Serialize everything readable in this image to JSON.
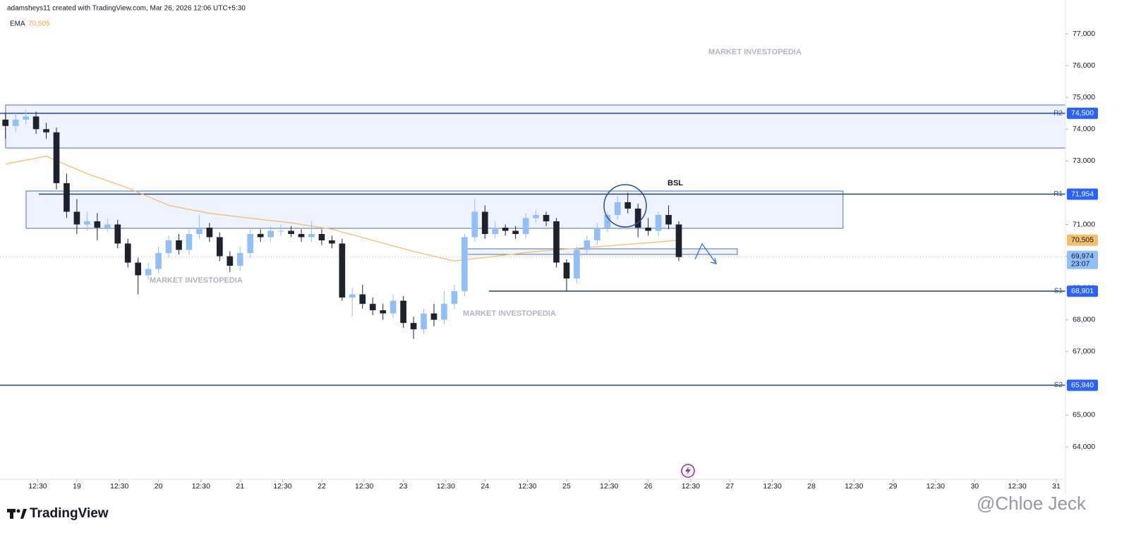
{
  "chart_data": {
    "type": "candlestick",
    "header": "adamsheys11 created with TradingView.com, Mar 26, 2026 12:06 UTC+5:30",
    "ema": {
      "name": "EMA",
      "value": 70505,
      "value_label": "70,505",
      "color": "#f2c06b",
      "x": [
        3,
        15,
        27,
        39,
        51,
        63,
        75,
        87,
        99,
        111,
        123,
        135,
        147,
        159,
        171,
        183,
        195,
        201
      ],
      "values": [
        72900,
        73150,
        72600,
        72150,
        71600,
        71350,
        71200,
        71050,
        70850,
        70500,
        70150,
        69850,
        70000,
        70150,
        70250,
        70350,
        70450,
        70505
      ]
    },
    "candles": {
      "up_color": "#90bff9",
      "down_color": "#1e222d",
      "x": [
        3,
        6,
        9,
        12,
        15,
        18,
        21,
        24,
        27,
        30,
        33,
        36,
        39,
        42,
        45,
        48,
        51,
        54,
        57,
        60,
        63,
        66,
        69,
        72,
        75,
        78,
        81,
        84,
        87,
        90,
        93,
        96,
        99,
        102,
        105,
        108,
        111,
        114,
        117,
        120,
        123,
        126,
        129,
        132,
        135,
        138,
        141,
        144,
        147,
        150,
        153,
        156,
        159,
        162,
        165,
        168,
        171,
        174,
        177,
        180,
        183,
        186,
        189,
        192,
        195,
        198,
        201
      ],
      "open": [
        74300,
        74100,
        74300,
        74400,
        74000,
        73900,
        72300,
        71400,
        71000,
        71100,
        70900,
        71000,
        70400,
        69800,
        69400,
        69600,
        70100,
        70500,
        70200,
        70700,
        70900,
        70600,
        70000,
        69700,
        70100,
        70700,
        70600,
        70800,
        70800,
        70700,
        70600,
        70700,
        70500,
        70400,
        68700,
        68800,
        68500,
        68300,
        68200,
        68600,
        67900,
        67700,
        68200,
        68000,
        68500,
        68900,
        70600,
        71400,
        70700,
        70900,
        70800,
        70700,
        71200,
        71300,
        71100,
        69800,
        69300,
        70200,
        70500,
        70900,
        71300,
        71700,
        71500,
        70900,
        70800,
        71300,
        71000
      ],
      "high": [
        74500,
        74500,
        74600,
        74550,
        74200,
        74050,
        72600,
        71800,
        71400,
        71350,
        71200,
        71150,
        70550,
        69950,
        69800,
        70300,
        70650,
        70700,
        70900,
        71300,
        71050,
        70750,
        70150,
        70300,
        70850,
        70850,
        70950,
        71000,
        70950,
        70850,
        71100,
        70850,
        70650,
        70550,
        69000,
        69100,
        68700,
        68500,
        68800,
        68750,
        68100,
        68350,
        68500,
        68900,
        69100,
        70700,
        71800,
        71600,
        71100,
        71000,
        70950,
        71350,
        71450,
        71400,
        71200,
        69900,
        70300,
        70650,
        71050,
        71400,
        71900,
        72000,
        71650,
        71200,
        71400,
        71600,
        71100
      ],
      "low": [
        73700,
        73900,
        74150,
        73850,
        73700,
        72100,
        71200,
        70700,
        70800,
        70500,
        70750,
        70250,
        69650,
        68800,
        69250,
        69450,
        69950,
        70050,
        70050,
        70550,
        70450,
        69850,
        69500,
        69550,
        69950,
        70450,
        70450,
        70650,
        70600,
        70450,
        70450,
        70350,
        70250,
        68600,
        68100,
        68350,
        68150,
        68000,
        68050,
        67750,
        67400,
        67550,
        67800,
        67850,
        68350,
        68750,
        70450,
        70550,
        70550,
        70650,
        70550,
        70550,
        71050,
        70950,
        69650,
        68900,
        69150,
        70050,
        70350,
        70750,
        71150,
        71350,
        70600,
        70650,
        70650,
        70850,
        69850
      ],
      "close": [
        74100,
        74300,
        74400,
        74000,
        73900,
        72300,
        71400,
        71000,
        71100,
        70900,
        71000,
        70400,
        69800,
        69400,
        69600,
        70100,
        70500,
        70200,
        70700,
        70900,
        70600,
        70000,
        69700,
        70100,
        70700,
        70600,
        70800,
        70800,
        70700,
        70600,
        70700,
        70500,
        70400,
        68700,
        68800,
        68500,
        68300,
        68200,
        68600,
        67900,
        67700,
        68200,
        68000,
        68500,
        68900,
        70600,
        71400,
        70700,
        70900,
        70800,
        70700,
        71200,
        71300,
        71100,
        69800,
        69300,
        70200,
        70500,
        70900,
        71300,
        71700,
        71500,
        70900,
        70800,
        71300,
        71000,
        69974
      ]
    },
    "last_price": {
      "value": 69974,
      "value_label": "69,974",
      "countdown": "23:07",
      "color": "#90bff9"
    },
    "levels": [
      {
        "name": "R2",
        "value": 74500,
        "value_label": "74,500"
      },
      {
        "name": "R1",
        "value": 71954,
        "value_label": "71,954",
        "x0": 12.8
      },
      {
        "name": "S1",
        "value": 68901,
        "value_label": "68,901",
        "x0": 145.2
      },
      {
        "name": "S2",
        "value": 65940,
        "value_label": "65,940"
      }
    ],
    "level_color": "#2b4f8c",
    "tag_color": "#2962ff",
    "zones": [
      {
        "top": 74760,
        "bottom": 73406,
        "x0": 3.05,
        "x1": 314.7
      },
      {
        "top": 72053,
        "bottom": 70878,
        "x0": 9.07,
        "x1": 249.3
      },
      {
        "top": 70234,
        "bottom": 70057,
        "x0": 137.7,
        "x1": 218.2
      }
    ],
    "annotation": "BSL",
    "watermark": "MARKET INVESTOPEDIA",
    "logo": "TradingView",
    "credit": "@Chloe Jeck",
    "xlim": [
      1.4,
      314.7
    ],
    "ylim": [
      62980,
      78065
    ],
    "xticks": [
      {
        "value": 12.5,
        "label": "12:30"
      },
      {
        "value": 24,
        "label": "19"
      },
      {
        "value": 36.5,
        "label": "12:30"
      },
      {
        "value": 48,
        "label": "20"
      },
      {
        "value": 60.5,
        "label": "12:30"
      },
      {
        "value": 72,
        "label": "21"
      },
      {
        "value": 84.5,
        "label": "12:30"
      },
      {
        "value": 96,
        "label": "22"
      },
      {
        "value": 108.5,
        "label": "12:30"
      },
      {
        "value": 120,
        "label": "23"
      },
      {
        "value": 132.5,
        "label": "12:30"
      },
      {
        "value": 144,
        "label": "24"
      },
      {
        "value": 156.5,
        "label": "12:30"
      },
      {
        "value": 168,
        "label": "25"
      },
      {
        "value": 180.5,
        "label": "12:30"
      },
      {
        "value": 192,
        "label": "26"
      },
      {
        "value": 204.5,
        "label": "12:30"
      },
      {
        "value": 216,
        "label": "27"
      },
      {
        "value": 228.5,
        "label": "12:30"
      },
      {
        "value": 240,
        "label": "28"
      },
      {
        "value": 252.5,
        "label": "12:30"
      },
      {
        "value": 264,
        "label": "29"
      },
      {
        "value": 276.5,
        "label": "12:30"
      },
      {
        "value": 288,
        "label": "30"
      },
      {
        "value": 300.5,
        "label": "12:30"
      },
      {
        "value": 312,
        "label": "31"
      }
    ],
    "yticks": [
      {
        "value": 64000,
        "label": "64,000"
      },
      {
        "value": 65000,
        "label": "65,000"
      },
      {
        "value": 66000,
        "label": "66,000"
      },
      {
        "value": 67000,
        "label": "67,000"
      },
      {
        "value": 68000,
        "label": "68,000"
      },
      {
        "value": 69000,
        "label": "69,000"
      },
      {
        "value": 70000,
        "label": "70,000"
      },
      {
        "value": 71000,
        "label": "71,000"
      },
      {
        "value": 72000,
        "label": "72,000"
      },
      {
        "value": 73000,
        "label": "73,000"
      },
      {
        "value": 74000,
        "label": "74,000"
      },
      {
        "value": 75000,
        "label": "75,000"
      },
      {
        "value": 76000,
        "label": "76,000"
      },
      {
        "value": 77000,
        "label": "77,000"
      }
    ]
  }
}
